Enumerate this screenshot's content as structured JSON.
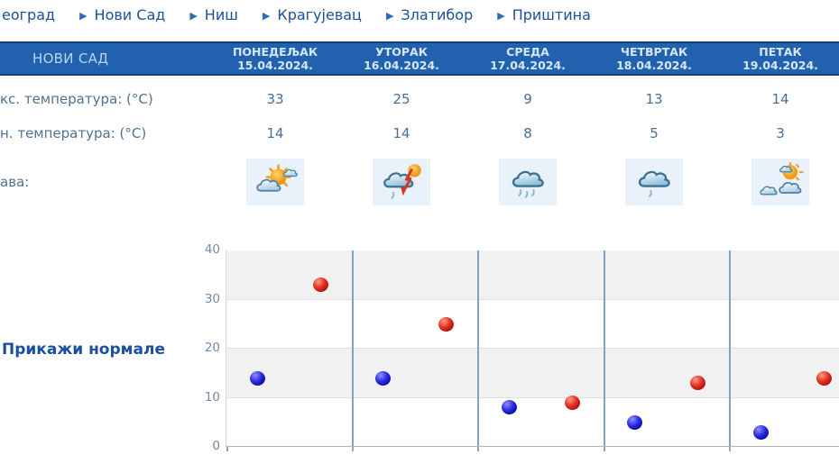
{
  "nav": {
    "arrow_glyph": "▶",
    "items": [
      {
        "label": "еоград"
      },
      {
        "label": "Нови Сад"
      },
      {
        "label": "Ниш"
      },
      {
        "label": "Крагујевац"
      },
      {
        "label": "Златибор"
      },
      {
        "label": "Приштина"
      }
    ]
  },
  "table": {
    "city": "НОВИ САД",
    "days": [
      {
        "name": "ПОНЕДЕЉАК",
        "date": "15.04.2024."
      },
      {
        "name": "УТОРАК",
        "date": "16.04.2024."
      },
      {
        "name": "СРЕДА",
        "date": "17.04.2024."
      },
      {
        "name": "ЧЕТВРТАК",
        "date": "18.04.2024."
      },
      {
        "name": "ПЕТАК",
        "date": "19.04.2024."
      }
    ],
    "rows": {
      "max_label": "кс. температура: (°C)",
      "min_label": "н. температура: (°C)",
      "icons_label": "ава:"
    },
    "max_temps": [
      "33",
      "25",
      "9",
      "13",
      "14"
    ],
    "min_temps": [
      "14",
      "14",
      "8",
      "5",
      "3"
    ],
    "icons": [
      "sun-behind-clouds",
      "thunderstorm-with-sun",
      "rain",
      "light-rain",
      "partly-cloudy"
    ]
  },
  "normals_link_label": "Прикажи нормале",
  "chart_data": {
    "type": "scatter",
    "categories": [
      "15.04.2024.",
      "16.04.2024.",
      "17.04.2024.",
      "18.04.2024.",
      "19.04.2024."
    ],
    "series": [
      {
        "name": "Мин. температура",
        "color": "#1a1ac8",
        "values": [
          14,
          14,
          8,
          5,
          3
        ]
      },
      {
        "name": "Макс. температура",
        "color": "#cc1a1a",
        "values": [
          33,
          25,
          9,
          13,
          14
        ]
      }
    ],
    "title": "",
    "xlabel": "",
    "ylabel": "",
    "ylim": [
      0,
      40
    ],
    "yticks": [
      0,
      10,
      20,
      30,
      40
    ],
    "grid": "horizontal-bands",
    "legend": "none"
  },
  "colors": {
    "header_bg": "#2161ae",
    "header_border": "#133d7a",
    "header_text": "#d5e6f8",
    "nav_text": "#1c5199",
    "table_text": "#517192",
    "link_text": "#1b4f9f",
    "icon_cell_bg": "#e9f2fa",
    "chart_band": "#f1f1f2",
    "chart_separator": "#7ba3c4",
    "dot_min": "#1a1ac8",
    "dot_max": "#cc1a1a"
  }
}
